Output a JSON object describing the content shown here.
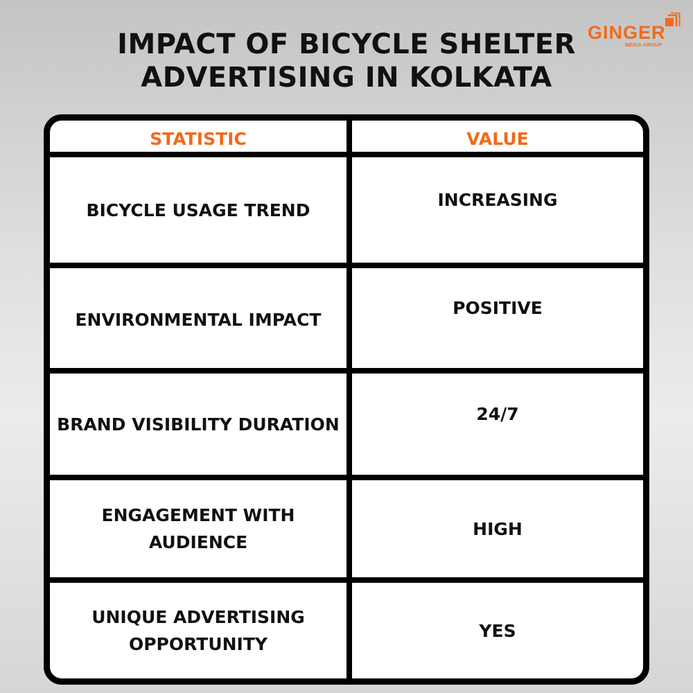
{
  "title_lines": [
    "IMPACT OF BICYCLE SHELTER",
    "ADVERTISING IN KOLKATA"
  ],
  "logo": {
    "word": "GINGER",
    "sub": "MEDIA GROUP",
    "color": "#f26a1b"
  },
  "table": {
    "headers": [
      "STATISTIC",
      "VALUE"
    ],
    "rows": [
      {
        "statistic": "BICYCLE USAGE TREND",
        "value": "INCREASING"
      },
      {
        "statistic": "ENVIRONMENTAL IMPACT",
        "value": "POSITIVE"
      },
      {
        "statistic": "BRAND VISIBILITY DURATION",
        "value": "24/7"
      },
      {
        "statistic": "ENGAGEMENT WITH AUDIENCE",
        "value": "HIGH"
      },
      {
        "statistic": "UNIQUE ADVERTISING OPPORTUNITY",
        "value": "YES"
      }
    ]
  }
}
